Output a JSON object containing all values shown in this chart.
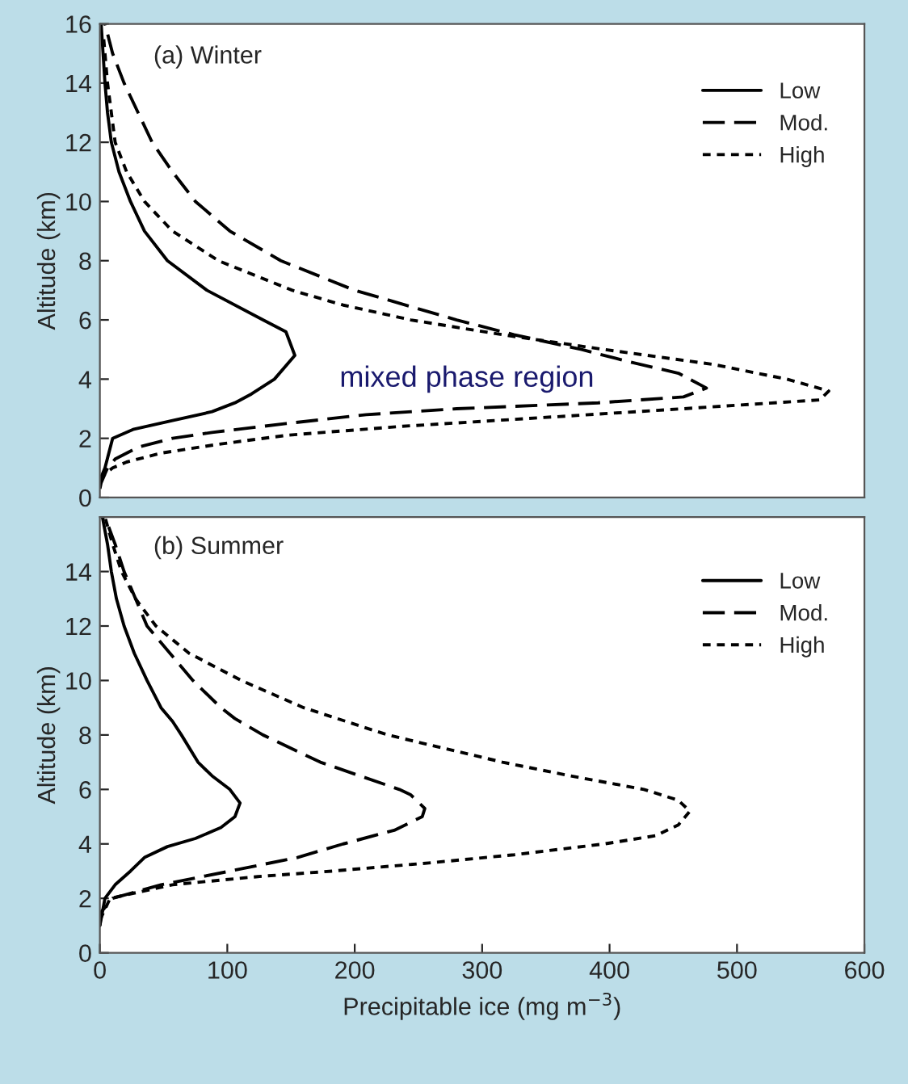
{
  "chart_data": [
    {
      "type": "line",
      "title": "(a) Winter",
      "ylabel": "Altitude (km)",
      "xlim": [
        0,
        600
      ],
      "ylim": [
        0,
        16
      ],
      "yticks": [
        0,
        2,
        4,
        6,
        8,
        10,
        12,
        14,
        16
      ],
      "tick_labels": "y",
      "legend": "top right",
      "annotations": [
        "mixed phase region"
      ],
      "series": [
        {
          "name": "Low",
          "color": "#000000",
          "line_style": "solid",
          "x": [
            0,
            2,
            4,
            10,
            26,
            57,
            88,
            106,
            119,
            137,
            153,
            146,
            128,
            84,
            53,
            35,
            24,
            15,
            9,
            6,
            4,
            1
          ],
          "values": [
            0.6,
            0.8,
            1,
            2,
            2.3,
            2.6,
            2.9,
            3.2,
            3.5,
            4,
            4.8,
            5.6,
            6,
            7,
            8,
            9,
            10,
            11,
            12,
            13,
            14,
            16
          ]
        },
        {
          "name": "Mod.",
          "color": "#000000",
          "line_style": "dashed",
          "x": [
            0,
            1,
            6,
            12,
            30,
            57,
            88,
            146,
            209,
            280,
            391,
            458,
            476,
            454,
            414,
            378,
            325,
            280,
            200,
            142,
            102,
            75,
            57,
            41,
            30,
            19,
            10,
            4
          ],
          "values": [
            0.3,
            0.5,
            1,
            1.3,
            1.7,
            2,
            2.2,
            2.5,
            2.8,
            3,
            3.2,
            3.4,
            3.7,
            4.2,
            4.6,
            5,
            5.5,
            6,
            7,
            8,
            9,
            10,
            11,
            12,
            13,
            14,
            15,
            16
          ]
        },
        {
          "name": "High",
          "color": "#000000",
          "line_style": "dotted",
          "x": [
            0,
            4,
            10,
            21,
            48,
            93,
            146,
            235,
            347,
            458,
            565,
            572,
            539,
            481,
            396,
            316,
            244,
            191,
            151,
            93,
            57,
            35,
            21,
            12,
            6,
            3
          ],
          "values": [
            0.6,
            0.8,
            1,
            1.2,
            1.5,
            1.8,
            2.1,
            2.4,
            2.7,
            3,
            3.3,
            3.6,
            4,
            4.5,
            5,
            5.5,
            6,
            6.5,
            7,
            8,
            9,
            10,
            11,
            12,
            14,
            15.5
          ]
        }
      ]
    },
    {
      "type": "line",
      "title": "(b) Summer",
      "xlabel": "Precipitable ice (mg m$^{−3}$)",
      "ylabel": "Altitude (km)",
      "xlim": [
        0,
        600
      ],
      "ylim": [
        0,
        16
      ],
      "xticks": [
        0,
        100,
        200,
        300,
        400,
        500,
        600
      ],
      "yticks": [
        0,
        2,
        4,
        6,
        8,
        10,
        12,
        14
      ],
      "legend": "top right",
      "series": [
        {
          "name": "Low",
          "color": "#000000",
          "line_style": "solid",
          "x": [
            0,
            4,
            12,
            24,
            35,
            53,
            75,
            95,
            106,
            110,
            102,
            88,
            77,
            64,
            57,
            48,
            37,
            27,
            19,
            13,
            9,
            6,
            2
          ],
          "values": [
            1,
            2,
            2.5,
            3,
            3.5,
            3.9,
            4.2,
            4.6,
            5,
            5.5,
            6,
            6.5,
            7,
            8,
            8.5,
            9,
            10,
            11,
            12,
            13,
            14,
            15,
            16
          ]
        },
        {
          "name": "Mod.",
          "color": "#000000",
          "line_style": "dashed",
          "x": [
            0,
            1,
            10,
            48,
            102,
            155,
            191,
            231,
            253,
            255,
            244,
            235,
            204,
            173,
            128,
            106,
            95,
            73,
            55,
            37,
            28,
            19,
            12,
            4
          ],
          "values": [
            1,
            1.5,
            2,
            2.5,
            3,
            3.5,
            4,
            4.5,
            5,
            5.3,
            5.8,
            6,
            6.5,
            7,
            8,
            8.6,
            9,
            10,
            11,
            12,
            13,
            14,
            15,
            16
          ]
        },
        {
          "name": "High",
          "color": "#000000",
          "line_style": "dotted",
          "x": [
            0,
            8,
            57,
            124,
            182,
            258,
            325,
            396,
            436,
            454,
            463,
            454,
            427,
            369,
            316,
            271,
            226,
            160,
            111,
            70,
            44,
            28,
            17,
            10,
            4
          ],
          "values": [
            1.2,
            2,
            2.5,
            2.8,
            3,
            3.3,
            3.6,
            4,
            4.3,
            4.7,
            5.2,
            5.6,
            6,
            6.5,
            7,
            7.5,
            8,
            9,
            10,
            11,
            12,
            13,
            14,
            15,
            16
          ]
        }
      ]
    }
  ]
}
